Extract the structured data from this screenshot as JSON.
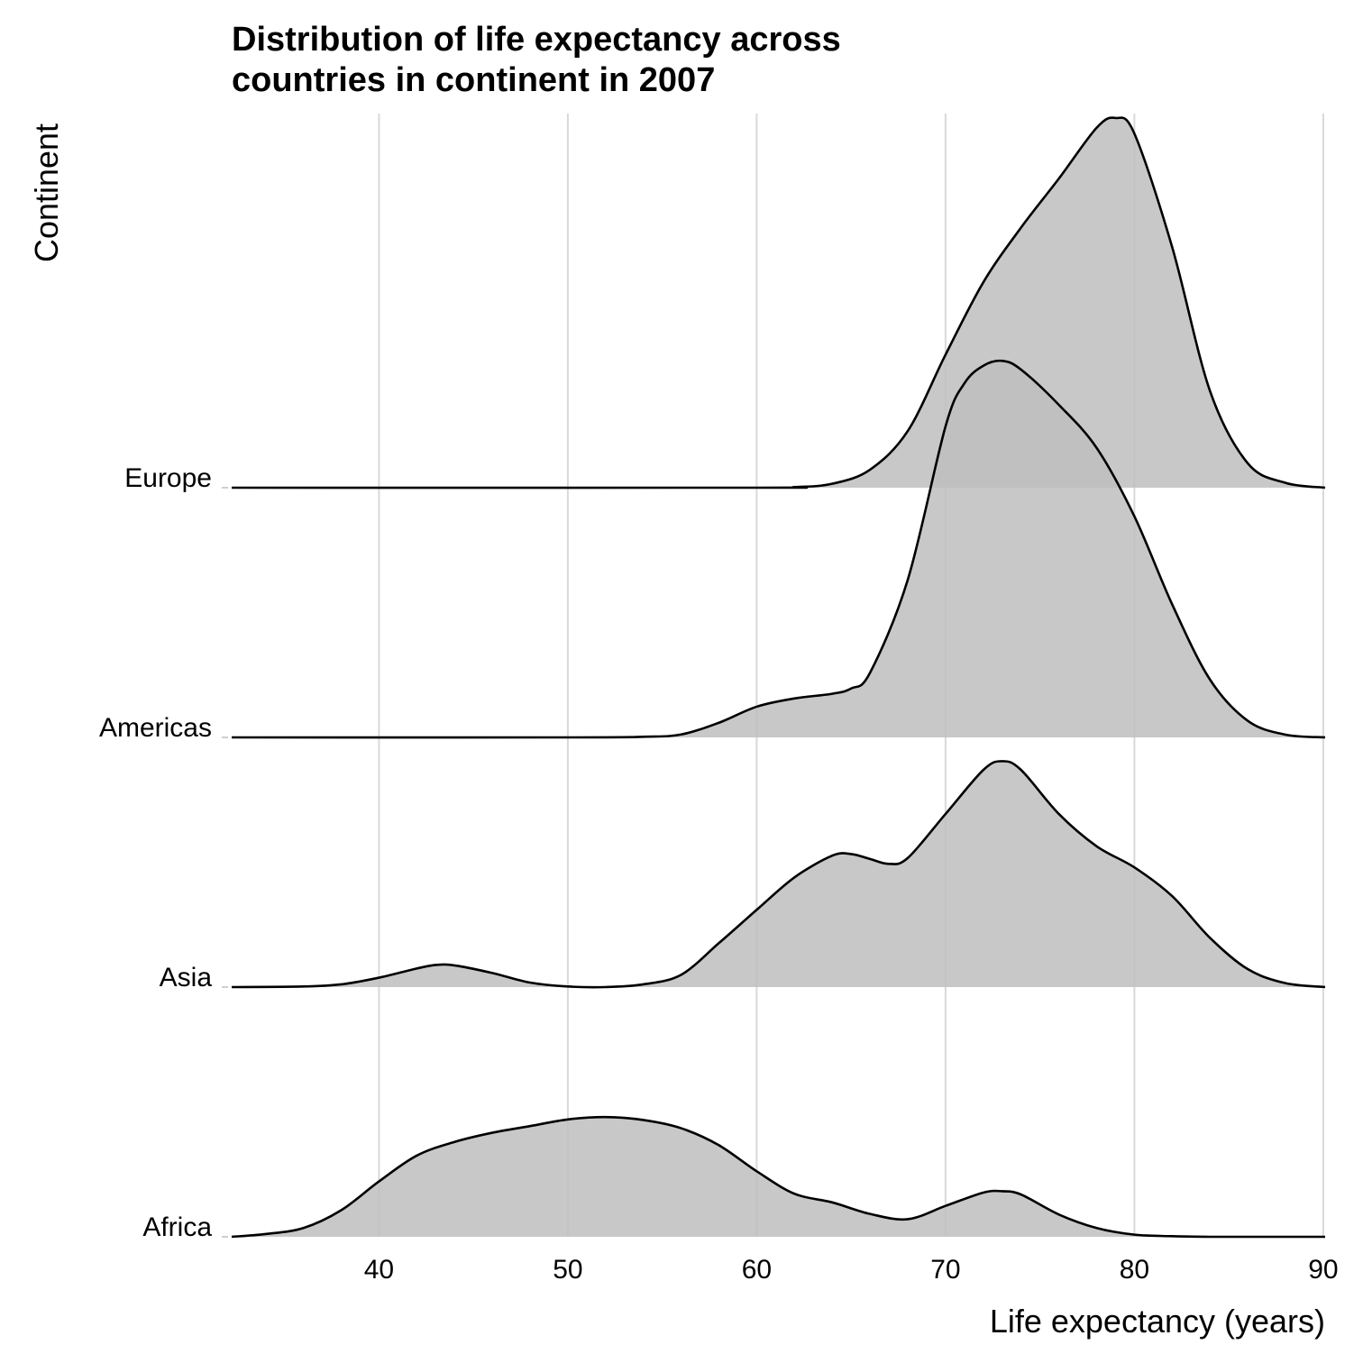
{
  "chart_data": {
    "type": "area",
    "title_lines": [
      "Distribution of life expectancy across",
      "countries in continent in 2007"
    ],
    "xlabel": "Life expectancy (years)",
    "ylabel": "Continent",
    "xlim": [
      32.2,
      90.1
    ],
    "x_ticks": [
      40,
      50,
      60,
      70,
      80,
      90
    ],
    "x_tick_labels": [
      "40",
      "50",
      "60",
      "70",
      "80",
      "90"
    ],
    "grid": "vertical-major",
    "fill_color": "#bebebe",
    "fill_opacity": 0.85,
    "line_color": "#000000",
    "categories": [
      "Africa",
      "Asia",
      "Americas",
      "Europe"
    ],
    "series": [
      {
        "name": "Africa",
        "x": [
          32.2,
          34,
          36,
          38,
          40,
          42,
          44,
          46,
          48,
          50,
          52,
          54,
          56,
          58,
          60,
          62,
          64,
          66,
          68,
          70,
          72,
          73,
          74,
          76,
          78,
          80,
          82,
          84,
          86,
          88,
          90.1
        ],
        "density": [
          0.0,
          0.0014,
          0.0045,
          0.0136,
          0.0283,
          0.0415,
          0.0485,
          0.0532,
          0.0566,
          0.06,
          0.0612,
          0.0597,
          0.0555,
          0.0468,
          0.0335,
          0.022,
          0.0176,
          0.0117,
          0.009,
          0.0158,
          0.0226,
          0.0233,
          0.0216,
          0.0114,
          0.0045,
          0.0011,
          0.0003,
          0.0,
          0.0,
          0.0,
          0.0
        ]
      },
      {
        "name": "Asia",
        "x": [
          32.2,
          36,
          38,
          40,
          42,
          43,
          44,
          46,
          48,
          50,
          52,
          54,
          56,
          58,
          60,
          62,
          64,
          65,
          66,
          67,
          68,
          70,
          72,
          73,
          74,
          76,
          78,
          80,
          82,
          84,
          86,
          88,
          90.1
        ],
        "density": [
          0.0,
          0.0003,
          0.0014,
          0.0048,
          0.0095,
          0.0113,
          0.0111,
          0.0072,
          0.0023,
          0.0003,
          0.0,
          0.0014,
          0.0063,
          0.0225,
          0.0395,
          0.0561,
          0.0672,
          0.068,
          0.0655,
          0.063,
          0.066,
          0.0885,
          0.111,
          0.1155,
          0.111,
          0.0885,
          0.072,
          0.0612,
          0.0465,
          0.0252,
          0.0092,
          0.002,
          0.0
        ]
      },
      {
        "name": "Americas",
        "x": [
          32.2,
          50,
          54,
          56,
          58,
          60,
          62,
          64,
          65,
          66,
          68,
          70,
          71,
          72,
          73,
          74,
          76,
          78,
          80,
          82,
          84,
          86,
          88,
          90.1
        ],
        "density": [
          0.0,
          0.0,
          0.0003,
          0.0015,
          0.0075,
          0.0157,
          0.0199,
          0.0223,
          0.025,
          0.033,
          0.0806,
          0.159,
          0.181,
          0.19,
          0.1925,
          0.188,
          0.17,
          0.148,
          0.113,
          0.068,
          0.0296,
          0.0085,
          0.0014,
          0.0
        ]
      },
      {
        "name": "Europe",
        "x": [
          32.2,
          60,
          62,
          64,
          66,
          68,
          70,
          72,
          74,
          76,
          78,
          79,
          80,
          82,
          84,
          86,
          88,
          90.1
        ],
        "density": [
          0.0,
          0.0,
          0.0003,
          0.002,
          0.0092,
          0.029,
          0.068,
          0.105,
          0.133,
          0.158,
          0.184,
          0.189,
          0.181,
          0.123,
          0.0495,
          0.0125,
          0.0025,
          0.0
        ]
      }
    ]
  }
}
